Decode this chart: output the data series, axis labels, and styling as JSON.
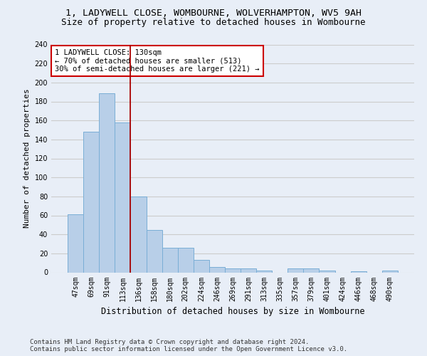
{
  "title": "1, LADYWELL CLOSE, WOMBOURNE, WOLVERHAMPTON, WV5 9AH",
  "subtitle": "Size of property relative to detached houses in Wombourne",
  "xlabel": "Distribution of detached houses by size in Wombourne",
  "ylabel": "Number of detached properties",
  "categories": [
    "47sqm",
    "69sqm",
    "91sqm",
    "113sqm",
    "136sqm",
    "158sqm",
    "180sqm",
    "202sqm",
    "224sqm",
    "246sqm",
    "269sqm",
    "291sqm",
    "313sqm",
    "335sqm",
    "357sqm",
    "379sqm",
    "401sqm",
    "424sqm",
    "446sqm",
    "468sqm",
    "490sqm"
  ],
  "values": [
    61,
    148,
    189,
    158,
    80,
    45,
    26,
    26,
    13,
    6,
    4,
    4,
    2,
    0,
    4,
    4,
    2,
    0,
    1,
    0,
    2
  ],
  "bar_color": "#b8cfe8",
  "bar_edge_color": "#7aaed6",
  "bar_edge_width": 0.7,
  "red_line_x": 3.5,
  "red_line_color": "#aa0000",
  "annotation_text": "1 LADYWELL CLOSE: 130sqm\n← 70% of detached houses are smaller (513)\n30% of semi-detached houses are larger (221) →",
  "annotation_box_color": "#ffffff",
  "annotation_box_edge": "#cc0000",
  "ylim": [
    0,
    240
  ],
  "yticks": [
    0,
    20,
    40,
    60,
    80,
    100,
    120,
    140,
    160,
    180,
    200,
    220,
    240
  ],
  "grid_color": "#cccccc",
  "bg_color": "#e8eef7",
  "footer": "Contains HM Land Registry data © Crown copyright and database right 2024.\nContains public sector information licensed under the Open Government Licence v3.0.",
  "title_fontsize": 9.5,
  "subtitle_fontsize": 9,
  "xlabel_fontsize": 8.5,
  "ylabel_fontsize": 8,
  "tick_fontsize": 7,
  "footer_fontsize": 6.5,
  "annotation_fontsize": 7.5
}
